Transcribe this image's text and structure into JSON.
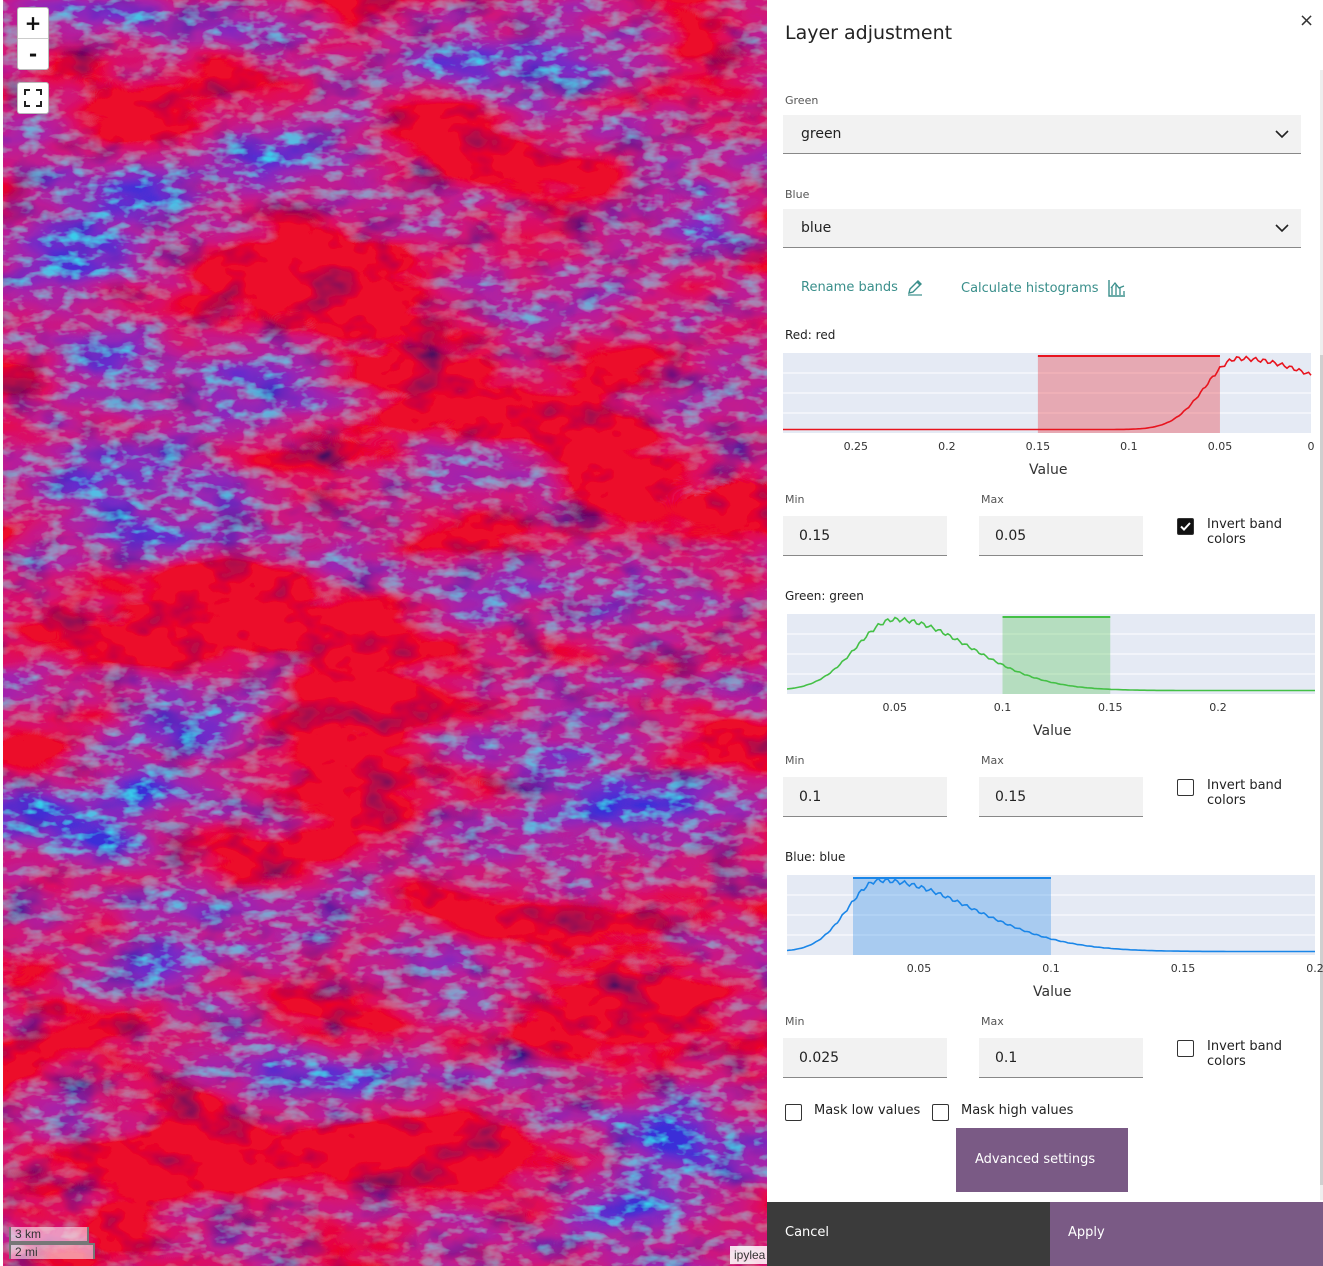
{
  "map": {
    "zoom_in": "+",
    "zoom_out": "-",
    "scale_km": "3 km",
    "scale_mi": "2 mi",
    "attribution": "ipylea"
  },
  "panel": {
    "title": "Layer adjustment",
    "close": "×",
    "green_select": {
      "label": "Green",
      "value": "green"
    },
    "blue_select": {
      "label": "Blue",
      "value": "blue"
    },
    "rename_bands": "Rename bands",
    "calc_histograms": "Calculate histograms",
    "mask_low": "Mask low values",
    "mask_high": "Mask high values",
    "mask_low_checked": false,
    "mask_high_checked": false,
    "advanced": "Advanced settings",
    "cancel": "Cancel",
    "apply": "Apply"
  },
  "colors": {
    "red": "#e8141e",
    "green": "#44c046",
    "blue": "#1a86e8",
    "accent": "#7a5a85",
    "link": "#3a8f8b"
  },
  "chart_data": [
    {
      "type": "area",
      "title": "Red: red",
      "xlabel": "Value",
      "xlim": [
        0.29,
        0.0
      ],
      "reversed": true,
      "ticks": [
        "0.25",
        "0.2",
        "0.15",
        "0.1",
        "0.05",
        "0"
      ],
      "tick_values": [
        0.25,
        0.2,
        0.15,
        0.1,
        0.05,
        0
      ],
      "min_label": "Min",
      "max_label": "Max",
      "min": "0.15",
      "max": "0.05",
      "invert_label": "Invert band colors",
      "invert": true,
      "curve": {
        "peak": 0.04,
        "spread_low": 0.055,
        "spread_high": 0.018,
        "start": 0.29,
        "end": 0.0
      },
      "color": "#e8141e"
    },
    {
      "type": "area",
      "title": "Green: green",
      "xlabel": "Value",
      "xlim": [
        0.0,
        0.245
      ],
      "reversed": false,
      "ticks": [
        "0.05",
        "0.1",
        "0.15",
        "0.2"
      ],
      "tick_values": [
        0.05,
        0.1,
        0.15,
        0.2
      ],
      "min_label": "Min",
      "max_label": "Max",
      "min": "0.1",
      "max": "0.15",
      "invert_label": "Invert band colors",
      "invert": false,
      "curve": {
        "peak": 0.05,
        "spread_low": 0.018,
        "spread_high": 0.035,
        "start": 0.0,
        "end": 0.245
      },
      "color": "#44c046"
    },
    {
      "type": "area",
      "title": "Blue: blue",
      "xlabel": "Value",
      "xlim": [
        0.0,
        0.2
      ],
      "reversed": false,
      "ticks": [
        "0.05",
        "0.1",
        "0.15",
        "0.2"
      ],
      "tick_values": [
        0.05,
        0.1,
        0.15,
        0.2
      ],
      "min_label": "Min",
      "max_label": "Max",
      "min": "0.025",
      "max": "0.1",
      "invert_label": "Invert band colors",
      "invert": false,
      "curve": {
        "peak": 0.035,
        "spread_low": 0.012,
        "spread_high": 0.035,
        "start": 0.0,
        "end": 0.2
      },
      "color": "#1a86e8"
    }
  ]
}
